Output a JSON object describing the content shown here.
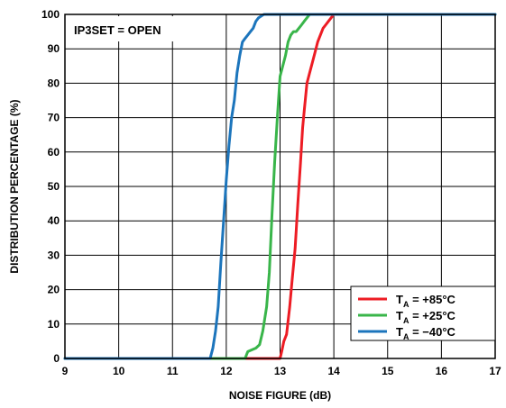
{
  "chart_data": {
    "type": "line",
    "xlabel": "NOISE FIGURE (dB)",
    "ylabel": "DISTRIBUTION PERCENTAGE (%)",
    "xlim": [
      9,
      17
    ],
    "ylim": [
      0,
      100
    ],
    "x_ticks": [
      9,
      10,
      11,
      12,
      13,
      14,
      15,
      16,
      17
    ],
    "y_ticks": [
      0,
      10,
      20,
      30,
      40,
      50,
      60,
      70,
      80,
      90,
      100
    ],
    "grid": true,
    "annotation": "IP3SET = OPEN",
    "legend_position": "bottom-right",
    "series": [
      {
        "name": "TA = +85°C",
        "name_main": "T",
        "name_sub": "A",
        "name_rest": " = +85°C",
        "color": "#ed1c24",
        "x": [
          9.0,
          13.0,
          13.03,
          13.07,
          13.12,
          13.18,
          13.22,
          13.28,
          13.33,
          13.38,
          13.42,
          13.45,
          13.5,
          13.55,
          13.6,
          13.65,
          13.7,
          13.75,
          13.8,
          13.85,
          13.9,
          13.95,
          14.0,
          17.0
        ],
        "y": [
          0,
          0,
          2,
          5,
          7,
          15,
          22,
          32,
          45,
          57,
          67,
          72,
          80,
          83,
          86,
          89,
          92,
          94,
          96,
          97,
          98,
          99,
          100,
          100
        ]
      },
      {
        "name": "TA = +25°C",
        "name_main": "T",
        "name_sub": "A",
        "name_rest": " = +25°C",
        "color": "#39b54a",
        "x": [
          9.0,
          12.35,
          12.4,
          12.55,
          12.62,
          12.68,
          12.75,
          12.8,
          12.85,
          12.9,
          12.95,
          13.0,
          13.05,
          13.1,
          13.15,
          13.2,
          13.25,
          13.3,
          13.35,
          13.4,
          13.45,
          13.5,
          13.55,
          17.0
        ],
        "y": [
          0,
          0,
          2,
          3,
          4,
          8,
          15,
          25,
          42,
          57,
          70,
          82,
          85,
          88,
          92,
          94,
          95,
          95,
          96,
          97,
          98,
          99,
          100,
          100
        ]
      },
      {
        "name": "TA = −40°C",
        "name_main": "T",
        "name_sub": "A",
        "name_rest": " = −40°C",
        "color": "#1c75bc",
        "x": [
          9.0,
          11.7,
          11.75,
          11.8,
          11.85,
          11.9,
          11.95,
          12.0,
          12.05,
          12.1,
          12.15,
          12.2,
          12.25,
          12.3,
          12.35,
          12.4,
          12.45,
          12.5,
          12.55,
          12.6,
          12.65,
          12.7,
          17.0
        ],
        "y": [
          0,
          0,
          3,
          8,
          15,
          28,
          40,
          52,
          62,
          70,
          75,
          83,
          88,
          92,
          93,
          94,
          95,
          96,
          98,
          99,
          99.5,
          100,
          100
        ]
      }
    ]
  }
}
